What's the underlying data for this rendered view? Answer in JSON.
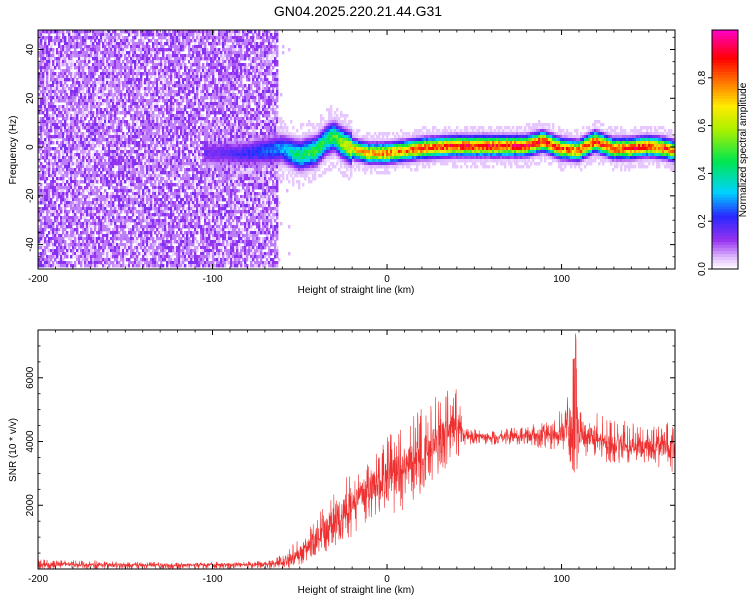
{
  "title": "GN04.2025.220.21.44.G31",
  "chart_data": [
    {
      "type": "heatmap",
      "title": "GN04.2025.220.21.44.G31",
      "xlabel": "Height of straight line (km)",
      "ylabel": "Frequency (Hz)",
      "xlim": [
        -200,
        165
      ],
      "ylim": [
        -50,
        48
      ],
      "x_ticks": [
        -200,
        -100,
        0,
        100
      ],
      "x_tick_labels": [
        "-200",
        "-100",
        "0",
        "100"
      ],
      "y_ticks": [
        -40,
        -20,
        0,
        20,
        40
      ],
      "y_tick_labels": [
        "-40",
        "-20",
        "0",
        "20",
        "40"
      ],
      "grid": false,
      "colorbar": {
        "label": "Normalized spectral amplitude",
        "range": [
          0,
          1
        ],
        "ticks": [
          0,
          0.2,
          0.4,
          0.6,
          0.8
        ],
        "tick_labels": [
          "0.0",
          "0.2",
          "0.4",
          "0.6",
          "0.8"
        ],
        "colormap": "rainbow: white-violet-blue-cyan-green-yellow-orange-red-magenta"
      },
      "noise_region_x": [
        -200,
        -62
      ],
      "signal_track": {
        "x": [
          -100,
          -80,
          -60,
          -50,
          -40,
          -35,
          -30,
          -25,
          -20,
          -10,
          0,
          10,
          20,
          40,
          60,
          80,
          90,
          100,
          110,
          120,
          130,
          140,
          150,
          160,
          165
        ],
        "frequency": [
          -3,
          -3,
          -1,
          -4,
          -2,
          2,
          4,
          1,
          -1,
          -3,
          -3,
          -2,
          -1,
          0,
          0,
          0,
          2,
          -1,
          -2,
          2,
          -1,
          -1,
          0,
          -1,
          -2
        ],
        "amplitude": [
          0.15,
          0.2,
          0.3,
          0.45,
          0.5,
          0.45,
          0.5,
          0.6,
          0.7,
          0.75,
          0.8,
          0.8,
          0.85,
          0.9,
          0.9,
          0.9,
          0.9,
          0.85,
          0.8,
          0.9,
          0.85,
          0.9,
          0.85,
          0.85,
          0.8
        ]
      }
    },
    {
      "type": "line",
      "xlabel": "Height of straight line (km)",
      "ylabel": "SNR (10 * v/v)",
      "xlim": [
        -200,
        165
      ],
      "ylim": [
        0,
        7500
      ],
      "x_ticks": [
        -200,
        -100,
        0,
        100
      ],
      "x_tick_labels": [
        "-200",
        "-100",
        "0",
        "100"
      ],
      "y_ticks": [
        2000,
        4000,
        6000
      ],
      "y_tick_labels": [
        "2000",
        "4000",
        "6000"
      ],
      "grid": false,
      "series": [
        {
          "color": "#ee3030",
          "envelope": {
            "x": [
              -200,
              -160,
              -120,
              -70,
              -62,
              -55,
              -50,
              -40,
              -30,
              -20,
              -10,
              0,
              10,
              20,
              30,
              40,
              45,
              60,
              80,
              95,
              100,
              105,
              108,
              110,
              115,
              130,
              150,
              165
            ],
            "low": [
              0,
              0,
              0,
              0,
              0,
              0,
              100,
              400,
              700,
              1000,
              1400,
              1700,
              1800,
              2400,
              3000,
              3400,
              3900,
              3900,
              3900,
              3700,
              3600,
              3300,
              1600,
              3300,
              3500,
              3300,
              3300,
              3000
            ],
            "high": [
              300,
              250,
              200,
              250,
              400,
              700,
              1100,
              1700,
              2500,
              3200,
              3600,
              4200,
              4600,
              5200,
              5500,
              5700,
              4400,
              4400,
              4500,
              4700,
              5100,
              5700,
              7400,
              5800,
              5100,
              4700,
              4600,
              4600
            ],
            "mean": [
              150,
              130,
              120,
              150,
              200,
              300,
              500,
              1000,
              1600,
              2100,
              2500,
              2900,
              3200,
              3700,
              4100,
              4500,
              4150,
              4150,
              4200,
              4200,
              4300,
              4300,
              4000,
              4300,
              4200,
              3900,
              3850,
              3750
            ]
          }
        }
      ]
    }
  ]
}
